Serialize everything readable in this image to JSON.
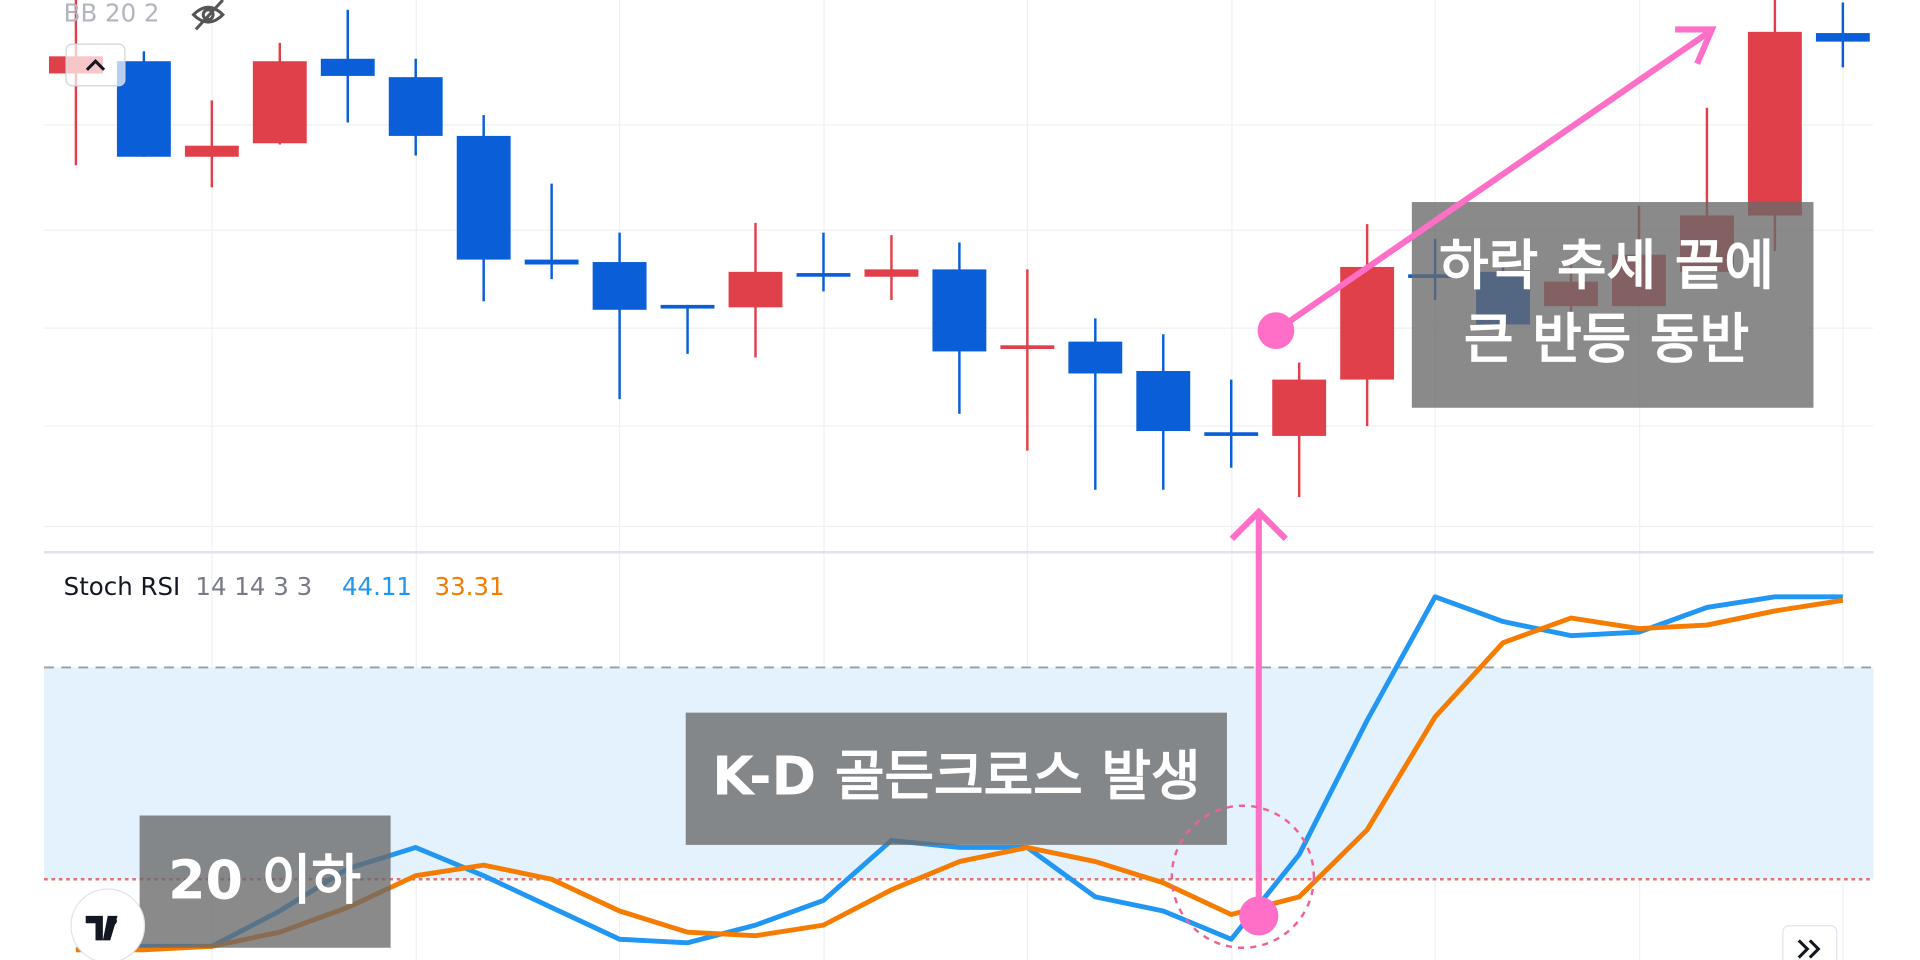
{
  "chart_data": [
    {
      "type": "candlestick",
      "indicator_label": "BB 20 2",
      "ylim": [
        0,
        450
      ],
      "up_color": "#e0404a",
      "down_color": "#0a5fd8",
      "candles": [
        {
          "open": 390,
          "high": 450,
          "low": 315,
          "close": 404
        },
        {
          "open": 400,
          "high": 408,
          "low": 322,
          "close": 322
        },
        {
          "open": 322,
          "high": 368,
          "low": 297,
          "close": 331
        },
        {
          "open": 333,
          "high": 415,
          "low": 332,
          "close": 400
        },
        {
          "open": 402,
          "high": 442,
          "low": 350,
          "close": 388
        },
        {
          "open": 387,
          "high": 402,
          "low": 323,
          "close": 339
        },
        {
          "open": 339,
          "high": 356,
          "low": 204,
          "close": 238
        },
        {
          "open": 238,
          "high": 300,
          "low": 222,
          "close": 234
        },
        {
          "open": 236,
          "high": 260,
          "low": 124,
          "close": 197
        },
        {
          "open": 201,
          "high": 201,
          "low": 161,
          "close": 200
        },
        {
          "open": 199,
          "high": 268,
          "low": 158,
          "close": 228
        },
        {
          "open": 227,
          "high": 260,
          "low": 212,
          "close": 224
        },
        {
          "open": 224,
          "high": 258,
          "low": 205,
          "close": 230
        },
        {
          "open": 230,
          "high": 252,
          "low": 112,
          "close": 163
        },
        {
          "open": 165,
          "high": 230,
          "low": 82,
          "close": 168
        },
        {
          "open": 171,
          "high": 190,
          "low": 50,
          "close": 145
        },
        {
          "open": 147,
          "high": 177,
          "low": 50,
          "close": 98
        },
        {
          "open": 97,
          "high": 140,
          "low": 68,
          "close": 95
        },
        {
          "open": 94,
          "high": 154,
          "low": 44,
          "close": 140
        },
        {
          "open": 140,
          "high": 267,
          "low": 102,
          "close": 232
        },
        {
          "open": 226,
          "high": 255,
          "low": 205,
          "close": 224
        },
        {
          "open": 228,
          "high": 235,
          "low": 180,
          "close": 185
        },
        {
          "open": 200,
          "high": 238,
          "low": 172,
          "close": 220
        },
        {
          "open": 200,
          "high": 282,
          "low": 200,
          "close": 242
        },
        {
          "open": 228,
          "high": 362,
          "low": 228,
          "close": 274
        },
        {
          "open": 274,
          "high": 450,
          "low": 245,
          "close": 424
        },
        {
          "open": 423,
          "high": 448,
          "low": 395,
          "close": 416
        }
      ]
    },
    {
      "type": "line",
      "indicator_name": "Stoch RSI",
      "params": "14 14 3 3",
      "ylim": [
        0,
        100
      ],
      "bands": [
        20,
        80
      ],
      "band_color": "#e3f2fd",
      "series": [
        {
          "legend_value": "44.11",
          "color": "#2196f3",
          "values": [
            0,
            1,
            1,
            11,
            23,
            29,
            21,
            12,
            3,
            2,
            7,
            14,
            31,
            29,
            29,
            15,
            11,
            3,
            27,
            65,
            100,
            93,
            89,
            90,
            97,
            100,
            100
          ]
        },
        {
          "legend_value": "33.31",
          "color": "#f57c00",
          "values": [
            0,
            0,
            1,
            5,
            12,
            21,
            24,
            20,
            11,
            5,
            4,
            7,
            17,
            25,
            29,
            25,
            19,
            10,
            15,
            34,
            66,
            87,
            94,
            91,
            92,
            96,
            99
          ]
        }
      ]
    }
  ],
  "annotations": {
    "rebound": [
      "하락 추세 끝에",
      "큰 반등 동반"
    ],
    "cross": "K-D 골든크로스 발생",
    "below": "20 이하"
  }
}
